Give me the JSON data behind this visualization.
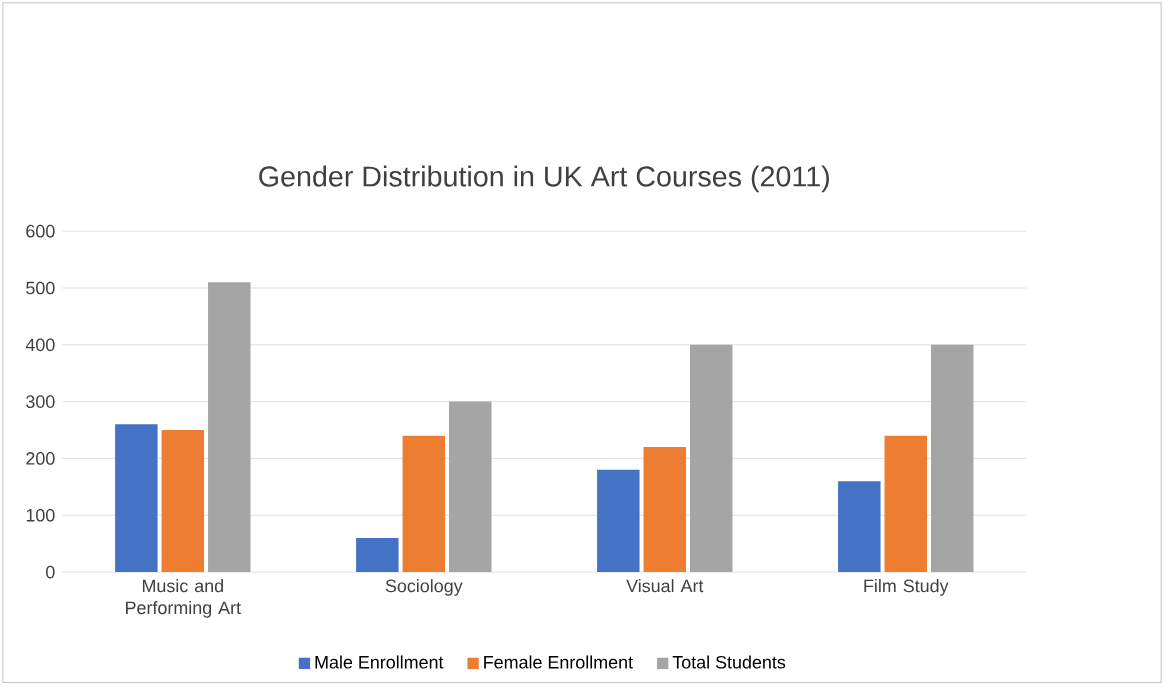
{
  "chart_data": {
    "type": "bar",
    "title": "Gender Distribution in UK Art Courses (2011)",
    "categories": [
      "Music and Performing Art",
      "Sociology",
      "Visual Art",
      "Film Study"
    ],
    "series": [
      {
        "name": "Male Enrollment",
        "color": "#4472c4",
        "values": [
          260,
          60,
          180,
          160
        ]
      },
      {
        "name": "Female Enrollment",
        "color": "#ed7d31",
        "values": [
          250,
          240,
          220,
          240
        ]
      },
      {
        "name": "Total Students",
        "color": "#a5a5a5",
        "values": [
          510,
          300,
          400,
          400
        ]
      }
    ],
    "ylim": [
      0,
      600
    ],
    "yticks": [
      0,
      100,
      200,
      300,
      400,
      500,
      600
    ],
    "grid": "y",
    "legend": "bottom"
  }
}
